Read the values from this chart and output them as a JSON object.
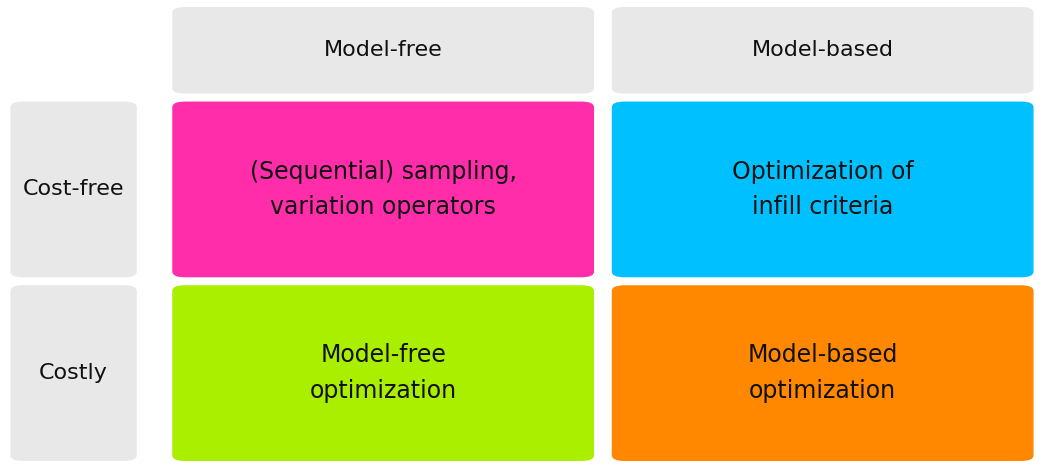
{
  "background_color": "#ffffff",
  "header_bg": "#e8e8e8",
  "row_label_bg": "#e8e8e8",
  "cell_colors": {
    "top_left": "#ff2daa",
    "top_right": "#00c0ff",
    "bottom_left": "#aaee00",
    "bottom_right": "#ff8800"
  },
  "col_headers": [
    "Model-free",
    "Model-based"
  ],
  "row_headers": [
    "Cost-free",
    "Costly"
  ],
  "cell_texts": {
    "top_left": "(Sequential) sampling,\nvariation operators",
    "top_right": "Optimization of\ninfill criteria",
    "bottom_left": "Model-free\noptimization",
    "bottom_right": "Model-based\noptimization"
  },
  "header_fontsize": 16,
  "cell_fontsize": 17,
  "row_label_fontsize": 16,
  "font_family": "DejaVu Sans",
  "text_color": "#111111",
  "cell_text_color": "#111111",
  "fig_width": 10.44,
  "fig_height": 4.68,
  "dpi": 100
}
